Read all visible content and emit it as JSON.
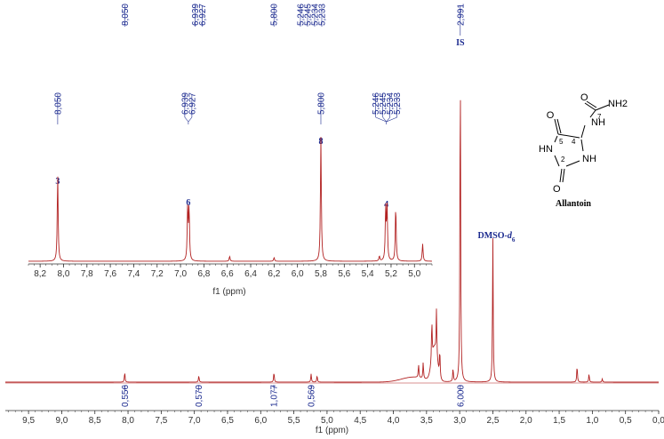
{
  "colors": {
    "trace": "#b22222",
    "label": "#1b2a8f",
    "axis": "#333333"
  },
  "chart_data": [
    {
      "type": "line",
      "name": "main-spectrum",
      "xlabel": "f1 (ppm)",
      "xlim": [
        9.85,
        0.0
      ],
      "x_reversed": true,
      "ticks": [
        "9,5",
        "9,0",
        "8,5",
        "8,0",
        "7,5",
        "7,0",
        "6,5",
        "6,0",
        "5,5",
        "5,0",
        "4,5",
        "4,0",
        "3,5",
        "3,0",
        "2,5",
        "2,0",
        "1,5",
        "1,0",
        "0,5",
        "0,0"
      ],
      "peaks": [
        {
          "x": 8.05,
          "height": 0.03
        },
        {
          "x": 6.933,
          "height": 0.02
        },
        {
          "x": 5.8,
          "height": 0.03
        },
        {
          "x": 5.24,
          "height": 0.025
        },
        {
          "x": 5.15,
          "height": 0.02
        },
        {
          "x": 3.62,
          "height": 0.04
        },
        {
          "x": 3.55,
          "height": 0.05
        },
        {
          "x": 3.42,
          "height": 0.12
        },
        {
          "x": 3.35,
          "height": 0.14
        },
        {
          "x": 3.3,
          "height": 0.08
        },
        {
          "x": 3.1,
          "height": 0.04
        },
        {
          "x": 2.991,
          "height": 1.0
        },
        {
          "x": 2.5,
          "height": 0.44
        },
        {
          "x": 1.23,
          "height": 0.05
        },
        {
          "x": 1.05,
          "height": 0.025
        },
        {
          "x": 0.85,
          "height": 0.01
        }
      ],
      "peak_labels": [
        "8,050",
        "6,939",
        "6,927",
        "5,800",
        "5,246",
        "5,245",
        "5,234",
        "5,233",
        "2,991"
      ],
      "peak_label_groups": [
        {
          "x": 8.05,
          "labels": [
            0
          ]
        },
        {
          "x": 6.933,
          "labels": [
            1,
            2
          ]
        },
        {
          "x": 5.8,
          "labels": [
            3
          ]
        },
        {
          "x": 5.24,
          "labels": [
            4,
            5,
            6,
            7
          ]
        },
        {
          "x": 2.991,
          "labels": [
            8
          ]
        }
      ],
      "integrals": [
        {
          "x": 8.05,
          "value": "0,556"
        },
        {
          "x": 6.933,
          "value": "0,570"
        },
        {
          "x": 5.8,
          "value": "1,077"
        },
        {
          "x": 5.24,
          "value": "0,569"
        },
        {
          "x": 2.991,
          "value": "6,000"
        }
      ],
      "annotations": [
        {
          "text": "IS",
          "x": 2.991
        },
        {
          "text": "DMSO-",
          "subscript": "6",
          "x": 2.5
        }
      ],
      "grid": false
    },
    {
      "type": "line",
      "name": "inset-spectrum",
      "xlabel": "f1 (ppm)",
      "xlim": [
        8.3,
        4.85
      ],
      "x_reversed": true,
      "ticks": [
        "8,2",
        "8,0",
        "7,8",
        "7,6",
        "7,4",
        "7,2",
        "7,0",
        "6,8",
        "6,6",
        "6,4",
        "6,2",
        "6,0",
        "5,8",
        "5,6",
        "5,4",
        "5,2",
        "5,0"
      ],
      "peaks": [
        {
          "x": 8.05,
          "height": 0.7
        },
        {
          "x": 6.939,
          "height": 0.42
        },
        {
          "x": 6.927,
          "height": 0.42
        },
        {
          "x": 6.58,
          "height": 0.04
        },
        {
          "x": 6.2,
          "height": 0.03
        },
        {
          "x": 5.8,
          "height": 1.0
        },
        {
          "x": 5.3,
          "height": 0.04
        },
        {
          "x": 5.246,
          "height": 0.42
        },
        {
          "x": 5.234,
          "height": 0.42
        },
        {
          "x": 5.16,
          "height": 0.44
        },
        {
          "x": 4.93,
          "height": 0.14
        }
      ],
      "peak_labels": [
        "8,050",
        "6,939",
        "6,927",
        "5,800",
        "5,246",
        "5,245",
        "5,234",
        "5,233"
      ],
      "peak_label_groups": [
        {
          "x": 8.05,
          "labels": [
            0
          ]
        },
        {
          "x": 6.933,
          "labels": [
            1,
            2
          ]
        },
        {
          "x": 5.8,
          "labels": [
            3
          ]
        },
        {
          "x": 5.24,
          "labels": [
            4,
            5,
            6,
            7
          ]
        }
      ],
      "assignments": [
        {
          "text": "3",
          "x": 8.05
        },
        {
          "text": "6",
          "x": 6.933
        },
        {
          "text": "8",
          "x": 5.8
        },
        {
          "text": "4",
          "x": 5.24
        }
      ],
      "grid": false
    }
  ],
  "structure": {
    "name": "Allantoin",
    "labels": [
      "O",
      "NH",
      "HN",
      "O",
      "NH",
      "NH2",
      "O"
    ],
    "numbers": [
      "5",
      "4",
      "2",
      "7"
    ]
  }
}
